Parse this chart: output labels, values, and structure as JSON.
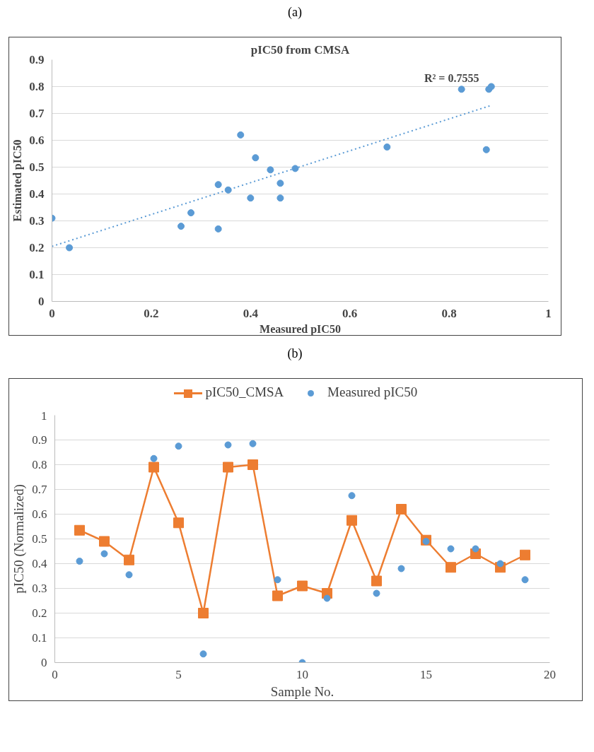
{
  "chart_data": [
    {
      "type": "scatter",
      "title": "pIC50 from CMSA",
      "xlabel": "Measured pIC50",
      "ylabel": "Estimated pIC50",
      "annotations": [
        "(a)",
        "R² = 0.7555"
      ],
      "xlim": [
        0,
        1
      ],
      "xticks": [
        0,
        0.2,
        0.4,
        0.6,
        0.8,
        1
      ],
      "ylim": [
        0,
        0.9
      ],
      "yticks": [
        0,
        0.1,
        0.2,
        0.3,
        0.4,
        0.5,
        0.6,
        0.7,
        0.8,
        0.9
      ],
      "grid": "y",
      "legend": false,
      "marker": "circle",
      "series": [
        {
          "color": "#5b9bd5",
          "x": [
            0.41,
            0.44,
            0.355,
            0.825,
            0.875,
            0.035,
            0.88,
            0.885,
            0.335,
            0,
            0.26,
            0.675,
            0.28,
            0.38,
            0.49,
            0.46,
            0.46,
            0.4,
            0.335
          ],
          "values": [
            0.535,
            0.49,
            0.415,
            0.79,
            0.565,
            0.2,
            0.79,
            0.8,
            0.27,
            0.31,
            0.28,
            0.575,
            0.33,
            0.62,
            0.495,
            0.385,
            0.44,
            0.385,
            0.435
          ]
        },
        {
          "type": "line",
          "color": "#5b9bd5",
          "line_style": "dotted",
          "marker": "none",
          "x": [
            0,
            0.885
          ],
          "values": [
            0.205,
            0.73
          ]
        }
      ]
    },
    {
      "type": "line",
      "xlabel": "Sample No.",
      "ylabel": "pIC50 (Normalized)",
      "annotations": [
        "(b)"
      ],
      "xlim": [
        0,
        20
      ],
      "xticks": [
        0,
        5,
        10,
        15,
        20
      ],
      "ylim": [
        0,
        1
      ],
      "yticks": [
        0,
        0.1,
        0.2,
        0.3,
        0.4,
        0.5,
        0.6,
        0.7,
        0.8,
        0.9,
        1
      ],
      "grid": "y",
      "legend": "top",
      "x": [
        1,
        2,
        3,
        4,
        5,
        6,
        7,
        8,
        9,
        10,
        11,
        12,
        13,
        14,
        15,
        16,
        17,
        18,
        19
      ],
      "series": [
        {
          "name": "pIC50_CMSA",
          "type": "line",
          "marker": "square",
          "color": "#ed7d31",
          "values": [
            0.535,
            0.49,
            0.415,
            0.79,
            0.565,
            0.2,
            0.79,
            0.8,
            0.27,
            0.31,
            0.28,
            0.575,
            0.33,
            0.62,
            0.495,
            0.385,
            0.44,
            0.385,
            0.435
          ]
        },
        {
          "name": "Measured pIC50",
          "type": "scatter",
          "marker": "circle",
          "color": "#5b9bd5",
          "values": [
            0.41,
            0.44,
            0.355,
            0.825,
            0.875,
            0.035,
            0.88,
            0.885,
            0.335,
            0,
            0.26,
            0.675,
            0.28,
            0.38,
            0.49,
            0.46,
            0.46,
            0.4,
            0.335
          ]
        }
      ]
    }
  ]
}
